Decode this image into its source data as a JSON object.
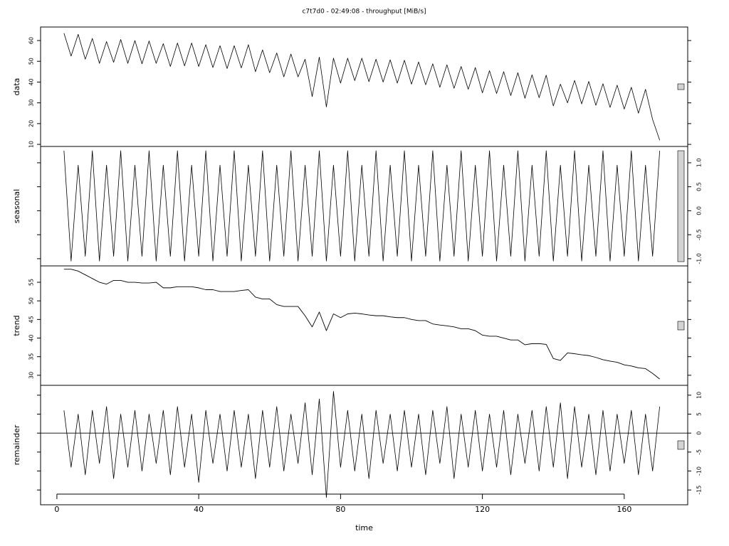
{
  "chart_data": [
    {
      "type": "line",
      "title": "c7t7d0 - 02:49:08 - throughput [MiB/s]",
      "ylabel": "data",
      "tick_side": "left",
      "color": "#000000",
      "xlim": [
        -4.6,
        177.9
      ],
      "ylim": [
        9,
        66.5
      ],
      "yticks": [
        10,
        20,
        30,
        40,
        50,
        60
      ],
      "x": [
        2,
        4,
        6,
        8,
        10,
        12,
        14,
        16,
        18,
        20,
        22,
        24,
        26,
        28,
        30,
        32,
        34,
        36,
        38,
        40,
        42,
        44,
        46,
        48,
        50,
        52,
        54,
        56,
        58,
        60,
        62,
        64,
        66,
        68,
        70,
        72,
        74,
        76,
        78,
        80,
        82,
        84,
        86,
        88,
        90,
        92,
        94,
        96,
        98,
        100,
        102,
        104,
        106,
        108,
        110,
        112,
        114,
        116,
        118,
        120,
        122,
        124,
        126,
        128,
        130,
        132,
        134,
        136,
        138,
        140,
        142,
        144,
        146,
        148,
        150,
        152,
        154,
        156,
        158,
        160,
        162,
        164,
        166,
        168,
        170
      ],
      "values": [
        63.5,
        52.5,
        63,
        51,
        61,
        49,
        59.5,
        49.5,
        60.5,
        49,
        60,
        48.8,
        59.8,
        49,
        58.5,
        47.5,
        58.8,
        47.8,
        58.8,
        47.5,
        58,
        47,
        57.5,
        46.5,
        57.5,
        46.8,
        58,
        45,
        55.5,
        44.5,
        54,
        42.5,
        53.5,
        42.5,
        51,
        33,
        52,
        28,
        51.5,
        39.5,
        51.5,
        40.7,
        51.5,
        40.2,
        51,
        40,
        50.7,
        39.5,
        50.5,
        39,
        49.7,
        38.7,
        48.8,
        37.5,
        48.3,
        37,
        47.5,
        36.5,
        47,
        34.8,
        45.5,
        34.5,
        45,
        33.5,
        44.5,
        32.2,
        43.5,
        32.5,
        43.3,
        28.5,
        39,
        30,
        40.8,
        29.5,
        40.3,
        28.8,
        39.2,
        27.8,
        38.5,
        27,
        37.5,
        25,
        36.5,
        22,
        12
      ]
    },
    {
      "type": "line",
      "ylabel": "seasonal",
      "tick_side": "right",
      "color": "#000000",
      "xlim": [
        -4.6,
        177.9
      ],
      "ylim": [
        -1.15,
        1.34
      ],
      "yticks": [
        {
          "value": -1,
          "label": "-1.0"
        },
        -0.5,
        {
          "value": 0,
          "label": "0.0"
        },
        0.5,
        {
          "value": 1,
          "label": "1.0"
        }
      ],
      "x": [
        2,
        4,
        6,
        8,
        10,
        12,
        14,
        16,
        18,
        20,
        22,
        24,
        26,
        28,
        30,
        32,
        34,
        36,
        38,
        40,
        42,
        44,
        46,
        48,
        50,
        52,
        54,
        56,
        58,
        60,
        62,
        64,
        66,
        68,
        70,
        72,
        74,
        76,
        78,
        80,
        82,
        84,
        86,
        88,
        90,
        92,
        94,
        96,
        98,
        100,
        102,
        104,
        106,
        108,
        110,
        112,
        114,
        116,
        118,
        120,
        122,
        124,
        126,
        128,
        130,
        132,
        134,
        136,
        138,
        140,
        142,
        144,
        146,
        148,
        150,
        152,
        154,
        156,
        158,
        160,
        162,
        164,
        166,
        168,
        170
      ],
      "values": [
        1.25,
        -1.05,
        0.95,
        -0.95,
        1.25,
        -1.05,
        0.95,
        -0.95,
        1.25,
        -1.05,
        0.95,
        -0.95,
        1.25,
        -1.05,
        0.95,
        -0.95,
        1.25,
        -1.05,
        0.95,
        -0.95,
        1.25,
        -1.05,
        0.95,
        -0.95,
        1.25,
        -1.05,
        0.95,
        -0.95,
        1.25,
        -1.05,
        0.95,
        -0.95,
        1.25,
        -1.05,
        0.95,
        -0.95,
        1.25,
        -1.05,
        0.95,
        -0.95,
        1.25,
        -1.05,
        0.95,
        -0.95,
        1.25,
        -1.05,
        0.95,
        -0.95,
        1.25,
        -1.05,
        0.95,
        -0.95,
        1.25,
        -1.05,
        0.95,
        -0.95,
        1.25,
        -1.05,
        0.95,
        -0.95,
        1.25,
        -1.05,
        0.95,
        -0.95,
        1.25,
        -1.05,
        0.95,
        -0.95,
        1.25,
        -1.05,
        0.95,
        -0.95,
        1.25,
        -1.05,
        0.95,
        -0.95,
        1.25,
        -1.05,
        0.95,
        -0.95,
        1.25,
        -1.05,
        0.95,
        -0.95,
        1.25
      ]
    },
    {
      "type": "line",
      "ylabel": "trend",
      "tick_side": "left",
      "color": "#000000",
      "xlim": [
        -4.6,
        177.9
      ],
      "ylim": [
        27.3,
        59.4
      ],
      "yticks": [
        30,
        35,
        40,
        45,
        50,
        55
      ],
      "x": [
        2,
        4,
        6,
        8,
        10,
        12,
        14,
        16,
        18,
        20,
        22,
        24,
        26,
        28,
        30,
        32,
        34,
        36,
        38,
        40,
        42,
        44,
        46,
        48,
        50,
        52,
        54,
        56,
        58,
        60,
        62,
        64,
        66,
        68,
        70,
        72,
        74,
        76,
        78,
        80,
        82,
        84,
        86,
        88,
        90,
        92,
        94,
        96,
        98,
        100,
        102,
        104,
        106,
        108,
        110,
        112,
        114,
        116,
        118,
        120,
        122,
        124,
        126,
        128,
        130,
        132,
        134,
        136,
        138,
        140,
        142,
        144,
        146,
        148,
        150,
        152,
        154,
        156,
        158,
        160,
        162,
        164,
        166,
        168,
        170
      ],
      "values": [
        58.5,
        58.5,
        58,
        57,
        56,
        55,
        54.5,
        55.5,
        55.5,
        55,
        55,
        54.8,
        54.8,
        55,
        53.5,
        53.5,
        53.8,
        53.8,
        53.8,
        53.5,
        53,
        53,
        52.5,
        52.5,
        52.5,
        52.8,
        53,
        51,
        50.5,
        50.5,
        49,
        48.5,
        48.5,
        48.5,
        46,
        43,
        47,
        42,
        46.5,
        45.5,
        46.5,
        46.7,
        46.5,
        46.2,
        46,
        46,
        45.7,
        45.5,
        45.5,
        45,
        44.7,
        44.7,
        43.8,
        43.5,
        43.3,
        43,
        42.5,
        42.5,
        42,
        40.8,
        40.5,
        40.5,
        40,
        39.5,
        39.5,
        38.2,
        38.5,
        38.5,
        38.3,
        34.5,
        34,
        36,
        35.8,
        35.5,
        35.3,
        34.8,
        34.2,
        33.8,
        33.5,
        32.8,
        32.5,
        32,
        31.8,
        30.5,
        29
      ]
    },
    {
      "type": "line",
      "ylabel": "remainder",
      "xlabel": "time",
      "tick_side": "right",
      "color": "#000000",
      "xlim": [
        -4.6,
        177.9
      ],
      "ylim": [
        -18.9,
        12.6
      ],
      "yticks": [
        -15,
        -10,
        -5,
        0,
        5,
        10
      ],
      "xticks": [
        0,
        40,
        80,
        120,
        160
      ],
      "x": [
        2,
        4,
        6,
        8,
        10,
        12,
        14,
        16,
        18,
        20,
        22,
        24,
        26,
        28,
        30,
        32,
        34,
        36,
        38,
        40,
        42,
        44,
        46,
        48,
        50,
        52,
        54,
        56,
        58,
        60,
        62,
        64,
        66,
        68,
        70,
        72,
        74,
        76,
        78,
        80,
        82,
        84,
        86,
        88,
        90,
        92,
        94,
        96,
        98,
        100,
        102,
        104,
        106,
        108,
        110,
        112,
        114,
        116,
        118,
        120,
        122,
        124,
        126,
        128,
        130,
        132,
        134,
        136,
        138,
        140,
        142,
        144,
        146,
        148,
        150,
        152,
        154,
        156,
        158,
        160,
        162,
        164,
        166,
        168,
        170
      ],
      "values": [
        6,
        -9,
        5,
        -11,
        6,
        -8,
        7,
        -12,
        5,
        -9,
        6,
        -10,
        5,
        -8,
        6,
        -11,
        7,
        -9,
        5,
        -13,
        6,
        -8,
        5,
        -10,
        6,
        -9,
        5,
        -12,
        6,
        -9,
        7,
        -10,
        5,
        -8,
        8,
        -11,
        9,
        -17,
        11,
        -9,
        6,
        -10,
        5,
        -12,
        6,
        -8,
        5,
        -10,
        6,
        -9,
        5,
        -11,
        6,
        -8,
        7,
        -12,
        5,
        -9,
        6,
        -10,
        5,
        -9,
        6,
        -11,
        5,
        -8,
        6,
        -10,
        7,
        -9,
        8,
        -12,
        7,
        -9,
        5,
        -11,
        6,
        -10,
        5,
        -8,
        6,
        -11,
        5,
        -10,
        7
      ]
    }
  ]
}
